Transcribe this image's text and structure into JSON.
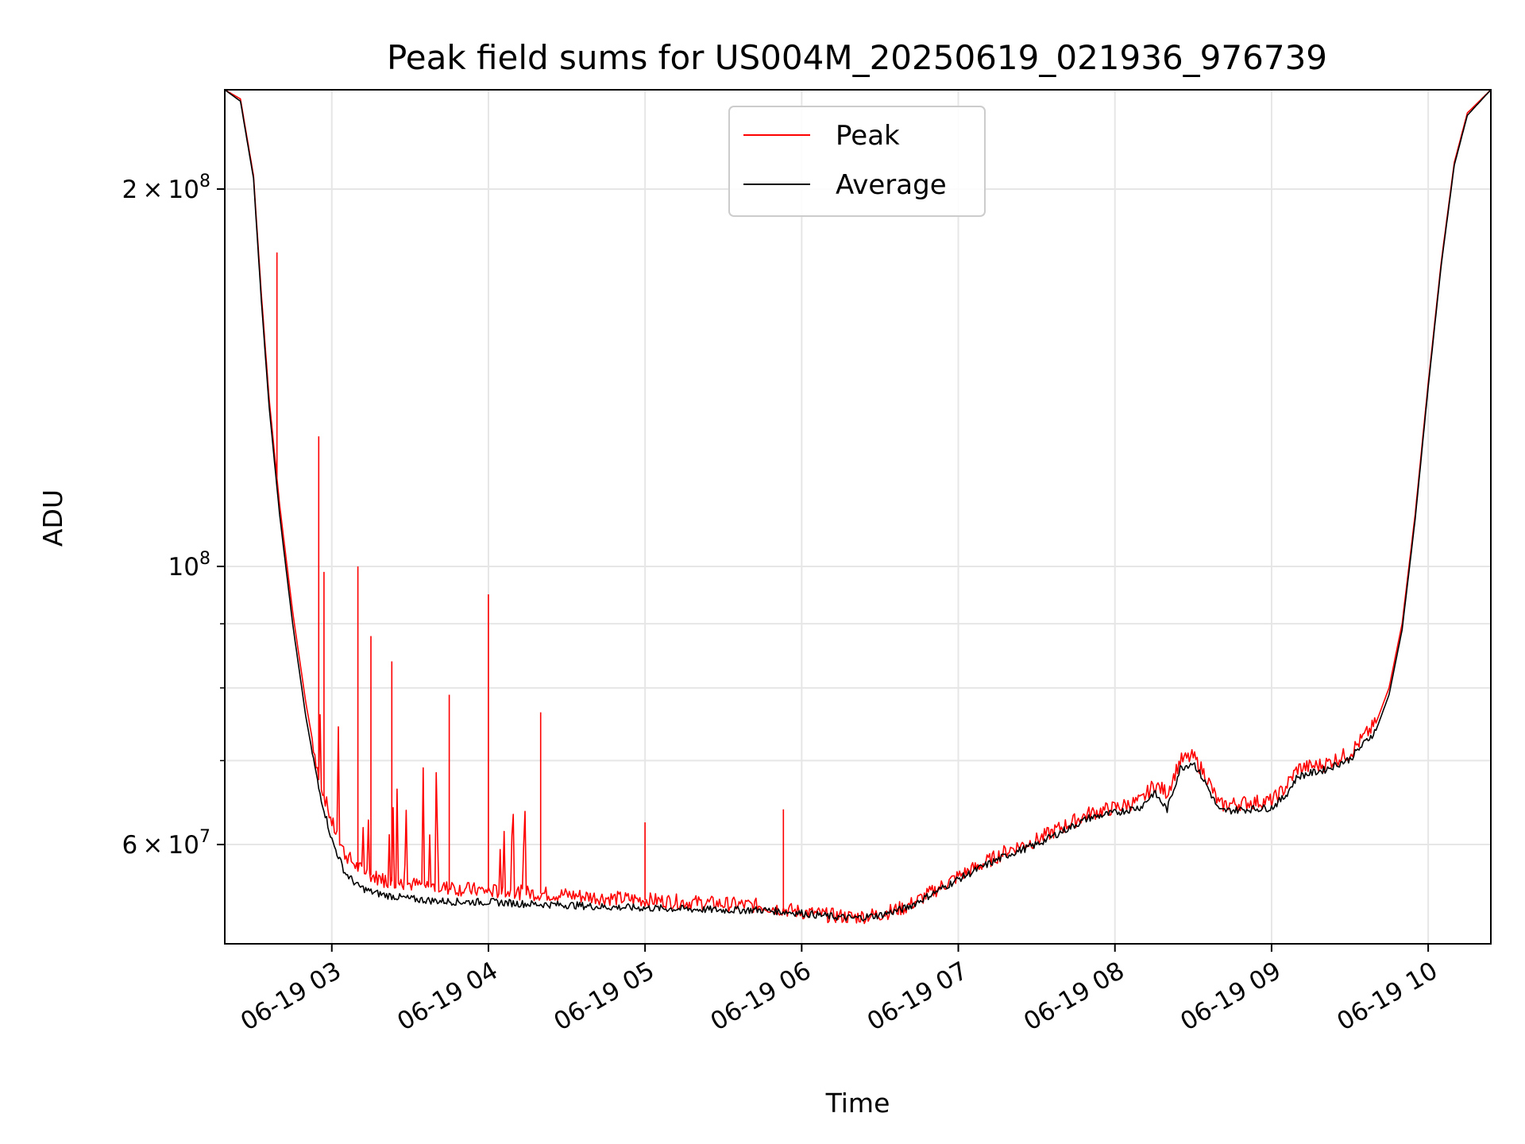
{
  "chart_data": {
    "type": "line",
    "title": "Peak field sums for US004M_20250619_021936_976739",
    "xlabel": "Time",
    "ylabel": "ADU",
    "yscale": "log",
    "xlim": [
      "06-19 02:19",
      "06-19 10:24"
    ],
    "ylim": [
      50000000,
      240000000
    ],
    "x_ticks": [
      "06-19 03",
      "06-19 04",
      "06-19 05",
      "06-19 06",
      "06-19 07",
      "06-19 08",
      "06-19 09",
      "06-19 10"
    ],
    "y_ticks": [
      {
        "value": 60000000,
        "mantissa": "6",
        "exp": "7",
        "label": "6 × 10^7"
      },
      {
        "value": 100000000,
        "mantissa": "",
        "exp": "8",
        "label": "10^8"
      },
      {
        "value": 200000000,
        "mantissa": "2",
        "exp": "8",
        "label": "2 × 10^8"
      }
    ],
    "y_minor_ticks": [
      70000000,
      80000000,
      90000000
    ],
    "grid": true,
    "legend": {
      "position": "upper center",
      "entries": [
        "Peak",
        "Average"
      ]
    },
    "series": [
      {
        "name": "Peak",
        "color": "#ff0000",
        "x": [
          "06-19 02:19",
          "06-19 02:25",
          "06-19 02:30",
          "06-19 02:33",
          "06-19 02:36",
          "06-19 02:40",
          "06-19 02:45",
          "06-19 02:50",
          "06-19 02:55",
          "06-19 03:00",
          "06-19 03:05",
          "06-19 03:10",
          "06-19 03:15",
          "06-19 03:20",
          "06-19 03:30",
          "06-19 03:40",
          "06-19 03:50",
          "06-19 04:00",
          "06-19 04:15",
          "06-19 04:30",
          "06-19 04:45",
          "06-19 05:00",
          "06-19 05:15",
          "06-19 05:30",
          "06-19 05:45",
          "06-19 06:00",
          "06-19 06:10",
          "06-19 06:20",
          "06-19 06:30",
          "06-19 06:40",
          "06-19 06:50",
          "06-19 07:00",
          "06-19 07:10",
          "06-19 07:20",
          "06-19 07:30",
          "06-19 07:40",
          "06-19 07:50",
          "06-19 08:00",
          "06-19 08:10",
          "06-19 08:15",
          "06-19 08:20",
          "06-19 08:25",
          "06-19 08:30",
          "06-19 08:35",
          "06-19 08:40",
          "06-19 08:50",
          "06-19 09:00",
          "06-19 09:05",
          "06-19 09:10",
          "06-19 09:20",
          "06-19 09:30",
          "06-19 09:40",
          "06-19 09:45",
          "06-19 09:50",
          "06-19 09:55",
          "06-19 10:00",
          "06-19 10:05",
          "06-19 10:10",
          "06-19 10:15",
          "06-19 10:24"
        ],
        "values": [
          240000000,
          236000000,
          205000000,
          165000000,
          136000000,
          112000000,
          92000000,
          78000000,
          68000000,
          62500000,
          59000000,
          57500000,
          56700000,
          56200000,
          55800000,
          55500000,
          55300000,
          55100000,
          54900000,
          54700000,
          54400000,
          54200000,
          54000000,
          53800000,
          53600000,
          53000000,
          52700000,
          52500000,
          52800000,
          53500000,
          55000000,
          56600000,
          58000000,
          59500000,
          60500000,
          62000000,
          63500000,
          64200000,
          65000000,
          67000000,
          66000000,
          70000000,
          70500000,
          68000000,
          64500000,
          64800000,
          65000000,
          66500000,
          69000000,
          69500000,
          71000000,
          75000000,
          80000000,
          90000000,
          110000000,
          140000000,
          175000000,
          210000000,
          230000000,
          240000000
        ],
        "spikes": [
          {
            "x": "06-19 02:39",
            "y": 178000000
          },
          {
            "x": "06-19 02:55",
            "y": 127000000
          },
          {
            "x": "06-19 02:57",
            "y": 99000000
          },
          {
            "x": "06-19 03:10",
            "y": 100000000
          },
          {
            "x": "06-19 03:15",
            "y": 88000000
          },
          {
            "x": "06-19 03:23",
            "y": 84000000
          },
          {
            "x": "06-19 03:45",
            "y": 79000000
          },
          {
            "x": "06-19 04:00",
            "y": 95000000
          },
          {
            "x": "06-19 04:20",
            "y": 76500000
          },
          {
            "x": "06-19 05:00",
            "y": 62500000
          },
          {
            "x": "06-19 05:53",
            "y": 64000000
          }
        ]
      },
      {
        "name": "Average",
        "color": "#000000",
        "x": [
          "06-19 02:19",
          "06-19 02:25",
          "06-19 02:30",
          "06-19 02:33",
          "06-19 02:36",
          "06-19 02:40",
          "06-19 02:45",
          "06-19 02:50",
          "06-19 02:55",
          "06-19 03:00",
          "06-19 03:05",
          "06-19 03:10",
          "06-19 03:15",
          "06-19 03:20",
          "06-19 03:30",
          "06-19 03:40",
          "06-19 03:50",
          "06-19 04:00",
          "06-19 04:15",
          "06-19 04:30",
          "06-19 04:45",
          "06-19 05:00",
          "06-19 05:15",
          "06-19 05:30",
          "06-19 05:45",
          "06-19 06:00",
          "06-19 06:10",
          "06-19 06:20",
          "06-19 06:30",
          "06-19 06:40",
          "06-19 06:50",
          "06-19 07:00",
          "06-19 07:10",
          "06-19 07:20",
          "06-19 07:30",
          "06-19 07:40",
          "06-19 07:50",
          "06-19 08:00",
          "06-19 08:10",
          "06-19 08:15",
          "06-19 08:20",
          "06-19 08:25",
          "06-19 08:30",
          "06-19 08:35",
          "06-19 08:40",
          "06-19 08:50",
          "06-19 09:00",
          "06-19 09:05",
          "06-19 09:10",
          "06-19 09:20",
          "06-19 09:30",
          "06-19 09:40",
          "06-19 09:45",
          "06-19 09:50",
          "06-19 09:55",
          "06-19 10:00",
          "06-19 10:05",
          "06-19 10:10",
          "06-19 10:15",
          "06-19 10:24"
        ],
        "values": [
          240000000,
          235000000,
          204000000,
          163000000,
          134000000,
          110000000,
          90000000,
          76000000,
          66500000,
          60500000,
          57000000,
          55600000,
          55000000,
          54700000,
          54300000,
          54100000,
          54000000,
          54000000,
          53800000,
          53700000,
          53500000,
          53400000,
          53300000,
          53200000,
          53200000,
          52900000,
          52600000,
          52400000,
          52700000,
          53400000,
          54800000,
          56300000,
          57700000,
          59000000,
          60000000,
          61500000,
          63000000,
          63600000,
          64300000,
          66000000,
          64000000,
          69000000,
          69800000,
          67000000,
          63800000,
          64000000,
          64200000,
          65500000,
          68000000,
          68800000,
          70200000,
          74000000,
          79000000,
          89000000,
          109000000,
          139000000,
          174000000,
          209000000,
          229000000,
          240000000
        ]
      }
    ]
  }
}
